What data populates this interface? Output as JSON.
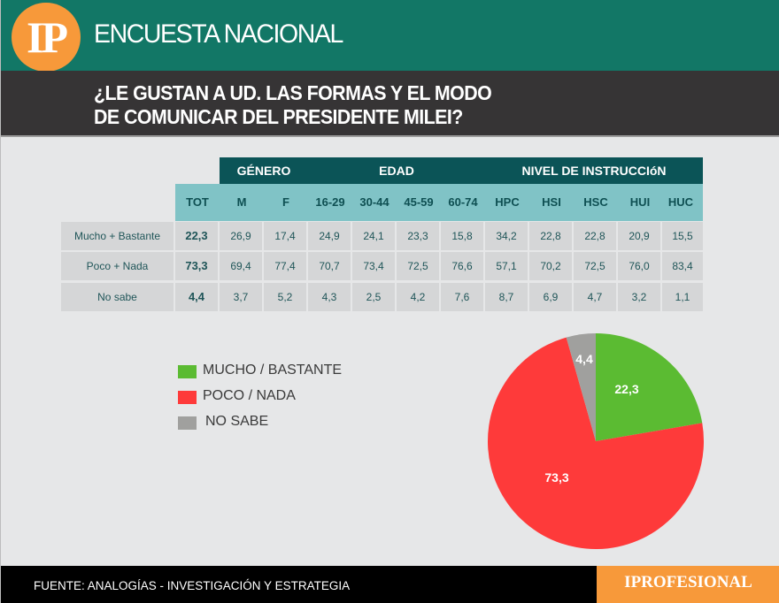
{
  "header": {
    "logo_text": "IP",
    "title": "ENCUESTA NACIONAL",
    "question_line1": "¿LE GUSTAN A UD. LAS FORMAS Y EL MODO",
    "question_line2": "DE COMUNICAR DEL PRESIDENTE MILEI?"
  },
  "table": {
    "groups": [
      {
        "label": "GÉNERO"
      },
      {
        "label": "EDAD"
      },
      {
        "label": "NIVEL DE INSTRUCCIóN"
      }
    ],
    "columns": [
      "TOT",
      "M",
      "F",
      "16-29",
      "30-44",
      "45-59",
      "60-74",
      "HPC",
      "HSI",
      "HSC",
      "HUI",
      "HUC"
    ],
    "rows": [
      {
        "label": "Mucho + Bastante",
        "values": [
          "22,3",
          "26,9",
          "17,4",
          "24,9",
          "24,1",
          "23,3",
          "15,8",
          "34,2",
          "22,8",
          "22,8",
          "20,9",
          "15,5"
        ]
      },
      {
        "label": "Poco + Nada",
        "values": [
          "73,3",
          "69,4",
          "77,4",
          "70,7",
          "73,4",
          "72,5",
          "76,6",
          "57,1",
          "70,2",
          "72,5",
          "76,0",
          "83,4"
        ]
      },
      {
        "label": "No sabe",
        "values": [
          "4,4",
          "3,7",
          "5,2",
          "4,3",
          "2,5",
          "4,2",
          "7,6",
          "8,7",
          "6,9",
          "4,7",
          "3,2",
          "1,1"
        ]
      }
    ]
  },
  "legend": [
    {
      "label": "MUCHO / BASTANTE",
      "color": "#5bbb32"
    },
    {
      "label": "POCO / NADA",
      "color": "#fe3a3a"
    },
    {
      "label": "NO SABE",
      "color": "#a0a09e"
    }
  ],
  "chart_data": [
    {
      "type": "table",
      "title": "¿LE GUSTAN A UD. LAS FORMAS Y EL MODO DE COMUNICAR DEL PRESIDENTE MILEI?",
      "column_groups": {
        "GÉNERO": [
          "M",
          "F"
        ],
        "EDAD": [
          "16-29",
          "30-44",
          "45-59",
          "60-74"
        ],
        "NIVEL DE INSTRUCCIóN": [
          "HPC",
          "HSI",
          "HSC",
          "HUI",
          "HUC"
        ]
      },
      "categories": [
        "TOT",
        "M",
        "F",
        "16-29",
        "30-44",
        "45-59",
        "60-74",
        "HPC",
        "HSI",
        "HSC",
        "HUI",
        "HUC"
      ],
      "series": [
        {
          "name": "Mucho + Bastante",
          "values": [
            22.3,
            26.9,
            17.4,
            24.9,
            24.1,
            23.3,
            15.8,
            34.2,
            22.8,
            22.8,
            20.9,
            15.5
          ]
        },
        {
          "name": "Poco + Nada",
          "values": [
            73.3,
            69.4,
            77.4,
            70.7,
            73.4,
            72.5,
            76.6,
            57.1,
            70.2,
            72.5,
            76.0,
            83.4
          ]
        },
        {
          "name": "No sabe",
          "values": [
            4.4,
            3.7,
            5.2,
            4.3,
            2.5,
            4.2,
            7.6,
            8.7,
            6.9,
            4.7,
            3.2,
            1.1
          ]
        }
      ]
    },
    {
      "type": "pie",
      "categories": [
        "MUCHO / BASTANTE",
        "POCO / NADA",
        "NO SABE"
      ],
      "values": [
        22.3,
        73.3,
        4.4
      ],
      "labels": [
        "22,3",
        "73,3",
        "4,4"
      ],
      "colors": [
        "#5bbb32",
        "#fe3a3a",
        "#a0a09e"
      ],
      "legend_position": "left"
    }
  ],
  "footer": {
    "source": "FUENTE: ANALOGÍAS - INVESTIGACIÓN Y ESTRATEGIA",
    "brand": "IPROFESIONAL"
  }
}
